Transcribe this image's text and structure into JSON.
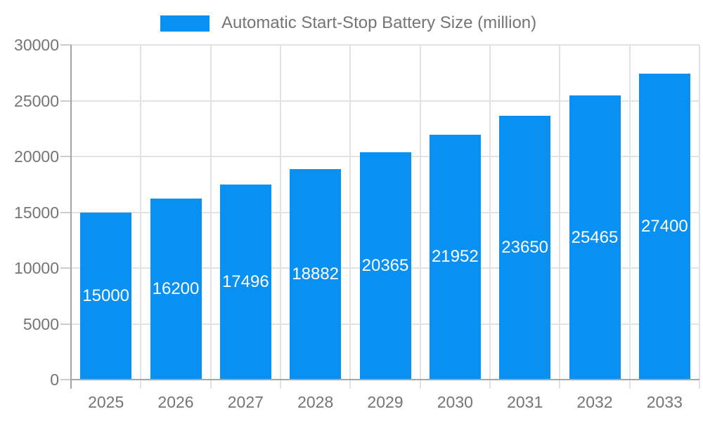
{
  "chart_data": {
    "type": "bar",
    "legend_label": "Automatic Start-Stop Battery Size (million)",
    "categories": [
      "2025",
      "2026",
      "2027",
      "2028",
      "2029",
      "2030",
      "2031",
      "2032",
      "2033"
    ],
    "series": [
      {
        "name": "Automatic Start-Stop Battery Size (million)",
        "values": [
          15000,
          16200,
          17496,
          18882,
          20365,
          21952,
          23650,
          25465,
          27400
        ]
      }
    ],
    "bar_value_labels": [
      "15000",
      "16200",
      "17496",
      "18882",
      "20365",
      "21952",
      "23650",
      "25465",
      "27400"
    ],
    "ylim": [
      0,
      30000
    ],
    "yticks": [
      0,
      5000,
      10000,
      15000,
      20000,
      25000,
      30000
    ],
    "grid": true,
    "legend_position": "top",
    "colors": {
      "bar": "#0890f2",
      "bar_label": "#ffffff",
      "axis_text": "#757575",
      "axis_line": "#a6a6a6",
      "gridline": "#e2e2e2",
      "tick": "#cccccc",
      "background": "#ffffff"
    }
  }
}
